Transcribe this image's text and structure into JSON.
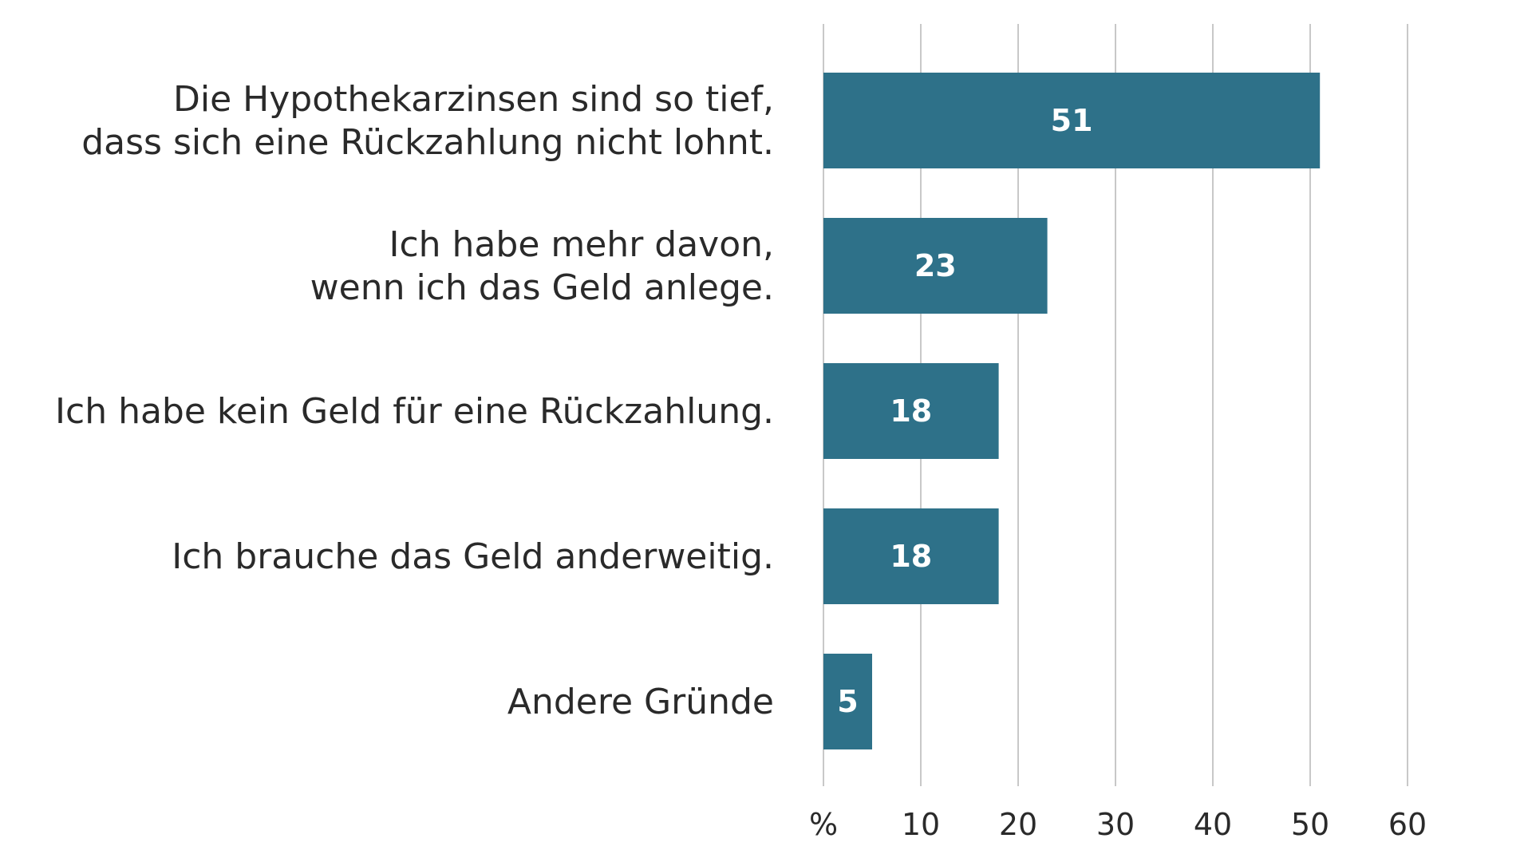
{
  "chart_data": {
    "type": "bar",
    "orientation": "horizontal",
    "categories": [
      [
        "Die Hypothekarzinsen sind so tief,",
        "dass sich eine Rückzahlung nicht lohnt."
      ],
      [
        "Ich habe mehr davon,",
        "wenn ich das Geld anlege."
      ],
      [
        "Ich habe kein Geld für eine Rückzahlung."
      ],
      [
        "Ich brauche das Geld anderweitig."
      ],
      [
        "Andere Gründe"
      ]
    ],
    "values": [
      51,
      23,
      18,
      18,
      5
    ],
    "data_labels": [
      "51",
      "23",
      "18",
      "18",
      "5"
    ],
    "x_ticks": [
      "%",
      "10",
      "20",
      "30",
      "40",
      "50",
      "60"
    ],
    "x_tick_values": [
      0,
      10,
      20,
      30,
      40,
      50,
      60
    ],
    "xlim": [
      0,
      60
    ],
    "grid": true,
    "bar_color": "#2e7189",
    "gridline_color": "#c8c8c8"
  }
}
